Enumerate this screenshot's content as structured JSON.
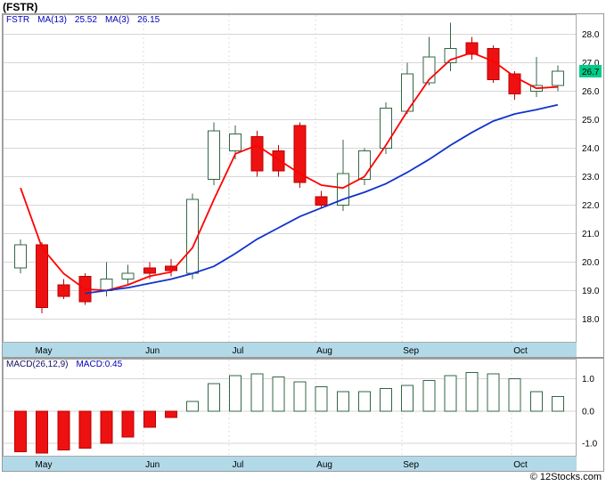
{
  "window": {
    "title": "(FSTR)",
    "copyright": "© 12Stocks.com"
  },
  "main_chart": {
    "legend": {
      "symbol": "FSTR",
      "ma13_label": "MA(13)",
      "ma13_value": "25.52",
      "ma3_label": "MA(3)",
      "ma3_value": "26.15"
    },
    "badge": {
      "text": "26.7",
      "color": "#00cc88"
    }
  },
  "macd_panel": {
    "label": "MACD(26,12,9)",
    "value_text": "MACD:0.45"
  },
  "chart_data": [
    {
      "type": "candlestick",
      "symbol": "FSTR",
      "title": "FSTR weekly candlesticks with MA(3) and MA(13)",
      "y_axis": {
        "ticks": [
          "28.0",
          "27.0",
          "26.0",
          "25.0",
          "24.0",
          "23.0",
          "22.0",
          "21.0",
          "20.0",
          "19.0",
          "18.0"
        ],
        "min": 17.2,
        "max": 28.7
      },
      "x_axis": {
        "months": [
          "May",
          "Jun",
          "Jul",
          "Aug",
          "Sep",
          "Oct"
        ],
        "fractions": [
          0.056,
          0.246,
          0.395,
          0.546,
          0.697,
          0.888
        ]
      },
      "candles": [
        [
          19.8,
          20.8,
          19.6,
          20.6
        ],
        [
          20.6,
          20.7,
          18.2,
          18.4
        ],
        [
          19.2,
          19.4,
          18.7,
          18.8
        ],
        [
          19.5,
          19.6,
          18.5,
          18.6
        ],
        [
          19.0,
          20.0,
          18.8,
          19.4
        ],
        [
          19.4,
          19.9,
          19.2,
          19.6
        ],
        [
          19.8,
          20.0,
          19.4,
          19.6
        ],
        [
          19.85,
          20.1,
          19.5,
          19.7
        ],
        [
          19.6,
          22.4,
          19.4,
          22.2
        ],
        [
          22.9,
          24.9,
          22.7,
          24.6
        ],
        [
          23.9,
          24.8,
          23.6,
          24.5
        ],
        [
          24.4,
          24.6,
          23.0,
          23.2
        ],
        [
          23.9,
          24.1,
          23.0,
          23.2
        ],
        [
          24.8,
          24.9,
          22.6,
          22.8
        ],
        [
          22.3,
          22.5,
          21.9,
          22.0
        ],
        [
          22.0,
          24.3,
          21.8,
          23.1
        ],
        [
          22.9,
          24.0,
          22.7,
          23.9
        ],
        [
          24.0,
          25.6,
          23.8,
          25.4
        ],
        [
          25.3,
          27.0,
          25.2,
          26.6
        ],
        [
          26.3,
          27.9,
          26.2,
          27.2
        ],
        [
          27.0,
          28.4,
          26.7,
          27.5
        ],
        [
          27.7,
          27.9,
          27.1,
          27.3
        ],
        [
          27.5,
          27.6,
          26.3,
          26.4
        ],
        [
          26.6,
          26.7,
          25.7,
          25.9
        ],
        [
          26.0,
          27.2,
          25.8,
          26.2
        ],
        [
          26.2,
          26.9,
          26.0,
          26.7
        ]
      ],
      "series": [
        {
          "name": "MA(3)",
          "color": "#ff0000",
          "values": [
            22.6,
            20.5,
            19.6,
            19.05,
            19.0,
            19.2,
            19.5,
            19.65,
            20.5,
            22.2,
            23.8,
            24.1,
            23.6,
            23.1,
            22.7,
            22.6,
            23.0,
            24.1,
            25.3,
            26.4,
            27.1,
            27.35,
            27.05,
            26.5,
            26.1,
            26.15
          ]
        },
        {
          "name": "MA(13)",
          "color": "#1133cc",
          "values": [
            null,
            null,
            null,
            18.9,
            19.0,
            19.1,
            19.25,
            19.4,
            19.6,
            19.85,
            20.3,
            20.8,
            21.2,
            21.6,
            21.9,
            22.2,
            22.45,
            22.75,
            23.15,
            23.6,
            24.1,
            24.55,
            24.95,
            25.2,
            25.35,
            25.52
          ]
        }
      ],
      "last_price": 26.7,
      "up_color": "#336644",
      "down_color": "#ee1111"
    },
    {
      "type": "bar",
      "title": "MACD(26,12,9) histogram",
      "y_axis": {
        "ticks": [
          "1.0",
          "0.0",
          "-1.0"
        ],
        "tick_values": [
          1.0,
          0.0,
          -1.0
        ],
        "min": -1.38,
        "max": 1.62
      },
      "x_axis": {
        "months": [
          "May",
          "Jun",
          "Jul",
          "Aug",
          "Sep",
          "Oct"
        ],
        "fractions": [
          0.056,
          0.246,
          0.395,
          0.546,
          0.697,
          0.888
        ]
      },
      "values": [
        -1.25,
        -1.3,
        -1.2,
        -1.15,
        -1.0,
        -0.8,
        -0.5,
        -0.2,
        0.3,
        0.85,
        1.1,
        1.15,
        1.05,
        0.9,
        0.75,
        0.6,
        0.6,
        0.7,
        0.8,
        0.95,
        1.1,
        1.2,
        1.15,
        1.0,
        0.6,
        0.45
      ],
      "last_value": 0.45,
      "positive_color": "#336644",
      "negative_color": "#ee1111"
    }
  ]
}
